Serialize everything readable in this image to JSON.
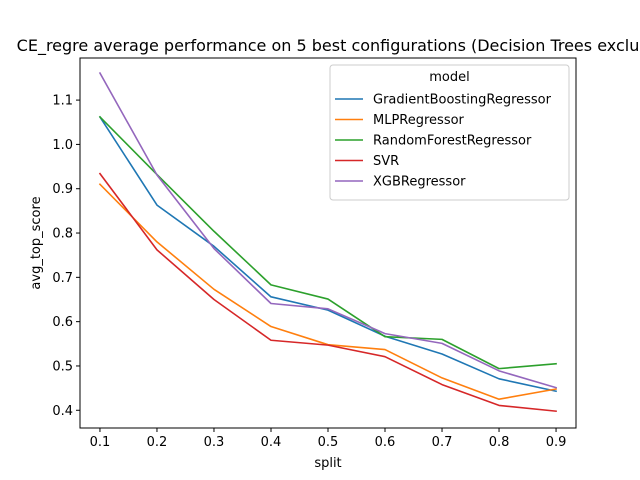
{
  "chart_data": {
    "type": "line",
    "title": "CE_regre average performance on 5 best configurations (Decision Trees exclu",
    "xlabel": "split",
    "ylabel": "avg_top_score",
    "x": [
      0.1,
      0.2,
      0.3,
      0.4,
      0.5,
      0.6,
      0.7,
      0.8,
      0.9
    ],
    "x_tick_labels": [
      "0.1",
      "0.2",
      "0.3",
      "0.4",
      "0.5",
      "0.6",
      "0.7",
      "0.8",
      "0.9"
    ],
    "y_ticks": [
      0.4,
      0.5,
      0.6,
      0.7,
      0.8,
      0.9,
      1.0,
      1.1
    ],
    "y_tick_labels": [
      "0.4",
      "0.5",
      "0.6",
      "0.7",
      "0.8",
      "0.9",
      "1.0",
      "1.1"
    ],
    "xlim": [
      0.065,
      0.935
    ],
    "ylim": [
      0.36,
      1.195
    ],
    "grid": false,
    "legend": {
      "title": "model",
      "placement": "upper-right"
    },
    "series": [
      {
        "name": "GradientBoostingRegressor",
        "color": "#1f77b4",
        "values": [
          1.062,
          0.863,
          0.77,
          0.656,
          0.626,
          0.567,
          0.527,
          0.471,
          0.443
        ]
      },
      {
        "name": "MLPRegressor",
        "color": "#ff7f0e",
        "values": [
          0.91,
          0.78,
          0.673,
          0.589,
          0.548,
          0.537,
          0.473,
          0.425,
          0.448
        ]
      },
      {
        "name": "RandomForestRegressor",
        "color": "#2ca02c",
        "values": [
          1.062,
          0.932,
          0.804,
          0.683,
          0.651,
          0.566,
          0.56,
          0.494,
          0.505
        ]
      },
      {
        "name": "SVR",
        "color": "#d62728",
        "values": [
          0.934,
          0.762,
          0.65,
          0.558,
          0.547,
          0.521,
          0.458,
          0.411,
          0.398
        ]
      },
      {
        "name": "XGBRegressor",
        "color": "#9467bd",
        "values": [
          1.161,
          0.931,
          0.765,
          0.641,
          0.629,
          0.573,
          0.551,
          0.489,
          0.451
        ]
      }
    ]
  }
}
